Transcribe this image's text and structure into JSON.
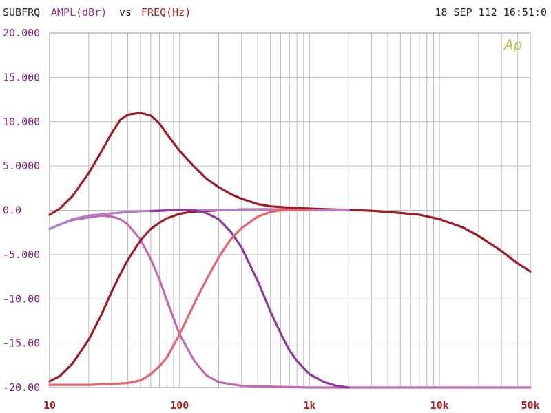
{
  "header": {
    "prefix": "SUBFRQ",
    "ylabel": "AMPL(dBr)",
    "vs": "vs",
    "xlabel": "FREQ(Hz)",
    "timestamp": "18 SEP 112 16:51:0"
  },
  "colors": {
    "background": "#ffffff",
    "grid": "#bdbdbd",
    "ylabel_color": "#8e3a8e",
    "xlabel_color": "#b01c1c",
    "logo_color": "#c8c04a"
  },
  "logo_text": "Ap",
  "chart_data": {
    "type": "line",
    "title": "SUBFRQ AMPL(dBr) vs FREQ(Hz)",
    "xlabel": "FREQ(Hz)",
    "ylabel": "AMPL(dBr)",
    "x_scale": "log",
    "xlim": [
      10,
      50000
    ],
    "ylim": [
      -20,
      20
    ],
    "grid": true,
    "x_tick_labels": [
      {
        "value": 10,
        "label": "10"
      },
      {
        "value": 100,
        "label": "100"
      },
      {
        "value": 1000,
        "label": "1k"
      },
      {
        "value": 10000,
        "label": "10k"
      },
      {
        "value": 50000,
        "label": "50k"
      }
    ],
    "y_tick_labels": [
      {
        "value": 20,
        "label": "20.000"
      },
      {
        "value": 15,
        "label": "15.000"
      },
      {
        "value": 10,
        "label": "10.000"
      },
      {
        "value": 5,
        "label": "5.0000"
      },
      {
        "value": 0,
        "label": "0.0"
      },
      {
        "value": -5,
        "label": "-5.000"
      },
      {
        "value": -10,
        "label": "-10.00"
      },
      {
        "value": -15,
        "label": "-15.00"
      },
      {
        "value": -20,
        "label": "-20.00"
      }
    ],
    "series": [
      {
        "color": "#a01c24",
        "points": [
          [
            10,
            -0.5
          ],
          [
            12,
            0.2
          ],
          [
            15,
            1.6
          ],
          [
            20,
            4.2
          ],
          [
            25,
            6.6
          ],
          [
            30,
            8.7
          ],
          [
            35,
            10.2
          ],
          [
            40,
            10.8
          ],
          [
            50,
            11.0
          ],
          [
            60,
            10.7
          ],
          [
            70,
            9.8
          ],
          [
            80,
            8.6
          ],
          [
            100,
            6.7
          ],
          [
            130,
            4.9
          ],
          [
            160,
            3.6
          ],
          [
            200,
            2.6
          ],
          [
            250,
            1.8
          ],
          [
            300,
            1.3
          ],
          [
            400,
            0.7
          ],
          [
            500,
            0.45
          ],
          [
            700,
            0.3
          ],
          [
            1000,
            0.2
          ],
          [
            1500,
            0.1
          ],
          [
            2000,
            0.05
          ],
          [
            3000,
            -0.05
          ],
          [
            5000,
            -0.3
          ],
          [
            7000,
            -0.5
          ],
          [
            10000,
            -1.0
          ],
          [
            15000,
            -1.9
          ],
          [
            20000,
            -2.9
          ],
          [
            30000,
            -4.6
          ],
          [
            40000,
            -6.0
          ],
          [
            50000,
            -6.9
          ]
        ]
      },
      {
        "color": "#c467b4",
        "points": [
          [
            10,
            -2.1
          ],
          [
            12,
            -1.6
          ],
          [
            15,
            -1.1
          ],
          [
            20,
            -0.8
          ],
          [
            25,
            -0.6
          ],
          [
            30,
            -0.7
          ],
          [
            35,
            -1.0
          ],
          [
            40,
            -1.6
          ],
          [
            50,
            -3.3
          ],
          [
            60,
            -5.5
          ],
          [
            70,
            -7.8
          ],
          [
            80,
            -10.2
          ],
          [
            100,
            -14.0
          ],
          [
            130,
            -17.0
          ],
          [
            160,
            -18.6
          ],
          [
            200,
            -19.4
          ],
          [
            300,
            -19.8
          ],
          [
            500,
            -19.9
          ],
          [
            1000,
            -20.0
          ],
          [
            50000,
            -20.0
          ]
        ]
      },
      {
        "color": "#a01c24",
        "points": [
          [
            10,
            -19.3
          ],
          [
            12,
            -18.7
          ],
          [
            15,
            -17.3
          ],
          [
            20,
            -14.6
          ],
          [
            25,
            -11.8
          ],
          [
            30,
            -9.2
          ],
          [
            35,
            -7.2
          ],
          [
            40,
            -5.6
          ],
          [
            50,
            -3.4
          ],
          [
            60,
            -2.1
          ],
          [
            70,
            -1.4
          ],
          [
            80,
            -0.9
          ],
          [
            100,
            -0.4
          ],
          [
            120,
            -0.2
          ],
          [
            150,
            -0.1
          ],
          [
            200,
            0.0
          ],
          [
            300,
            0.1
          ],
          [
            500,
            0.1
          ],
          [
            1000,
            0.05
          ],
          [
            2000,
            0.0
          ]
        ]
      },
      {
        "color": "#b07dc6",
        "points": [
          [
            10,
            -2.1
          ],
          [
            15,
            -1.0
          ],
          [
            20,
            -0.6
          ],
          [
            30,
            -0.35
          ],
          [
            50,
            -0.1
          ],
          [
            80,
            0.0
          ],
          [
            120,
            0.05
          ],
          [
            200,
            0.05
          ],
          [
            300,
            0.05
          ],
          [
            500,
            0.05
          ],
          [
            700,
            0.02
          ],
          [
            1000,
            0.0
          ],
          [
            2000,
            0.0
          ]
        ]
      },
      {
        "color": "#8e3a9e",
        "points": [
          [
            60,
            -0.1
          ],
          [
            100,
            0.05
          ],
          [
            130,
            0.0
          ],
          [
            160,
            -0.3
          ],
          [
            200,
            -1.0
          ],
          [
            250,
            -2.5
          ],
          [
            300,
            -4.2
          ],
          [
            400,
            -8.0
          ],
          [
            500,
            -11.4
          ],
          [
            600,
            -13.9
          ],
          [
            700,
            -15.8
          ],
          [
            800,
            -17.0
          ],
          [
            1000,
            -18.5
          ],
          [
            1300,
            -19.4
          ],
          [
            1600,
            -19.8
          ],
          [
            2000,
            -20.0
          ]
        ]
      },
      {
        "color": "#e8626a",
        "points": [
          [
            10,
            -19.7
          ],
          [
            20,
            -19.7
          ],
          [
            30,
            -19.6
          ],
          [
            40,
            -19.5
          ],
          [
            50,
            -19.2
          ],
          [
            60,
            -18.5
          ],
          [
            70,
            -17.6
          ],
          [
            80,
            -16.6
          ],
          [
            100,
            -14.0
          ],
          [
            130,
            -10.5
          ],
          [
            160,
            -7.9
          ],
          [
            200,
            -5.3
          ],
          [
            250,
            -3.2
          ],
          [
            300,
            -2.0
          ],
          [
            400,
            -0.7
          ],
          [
            500,
            -0.2
          ],
          [
            600,
            0.0
          ],
          [
            800,
            0.05
          ],
          [
            1000,
            0.05
          ]
        ]
      }
    ]
  }
}
